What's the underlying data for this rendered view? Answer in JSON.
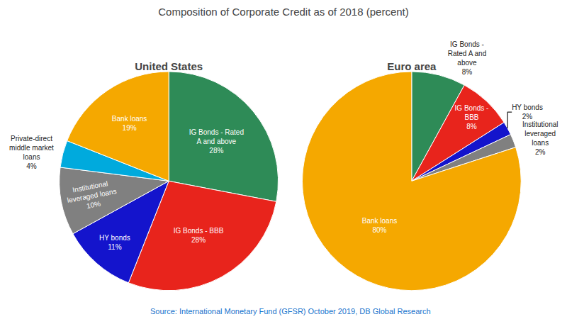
{
  "title": "Composition of Corporate Credit as of 2018 (percent)",
  "source": "Source: International Monetary Fund (GFSR) October 2019, DB Global Research",
  "chart_data": [
    {
      "type": "pie",
      "title": "United States",
      "categories": [
        "IG Bonds - Rated\nA and above",
        "IG Bonds - BBB",
        "HY bonds",
        "Institutional\nleveraged loans",
        "Private-direct\nmiddle market\nloans",
        "Bank loans"
      ],
      "values": [
        28,
        28,
        11,
        10,
        4,
        19
      ],
      "value_labels": [
        "28%",
        "28%",
        "11%",
        "10%",
        "4%",
        "19%"
      ],
      "colors": [
        "#2e8b57",
        "#e8241c",
        "#1414cc",
        "#808080",
        "#00aadd",
        "#f5a800"
      ],
      "data_labels": true
    },
    {
      "type": "pie",
      "title": "Euro area",
      "categories": [
        "IG Bonds -\nRated A and\nabove",
        "IG Bonds -\nBBB",
        "HY bonds",
        "Institutional\nleveraged\nloans",
        "Bank loans"
      ],
      "values": [
        8,
        8,
        2,
        2,
        80
      ],
      "value_labels": [
        "8%",
        "8%",
        "2%",
        "2%",
        "80%"
      ],
      "colors": [
        "#2e8b57",
        "#e8241c",
        "#1414cc",
        "#808080",
        "#f5a800"
      ],
      "data_labels": true
    }
  ]
}
